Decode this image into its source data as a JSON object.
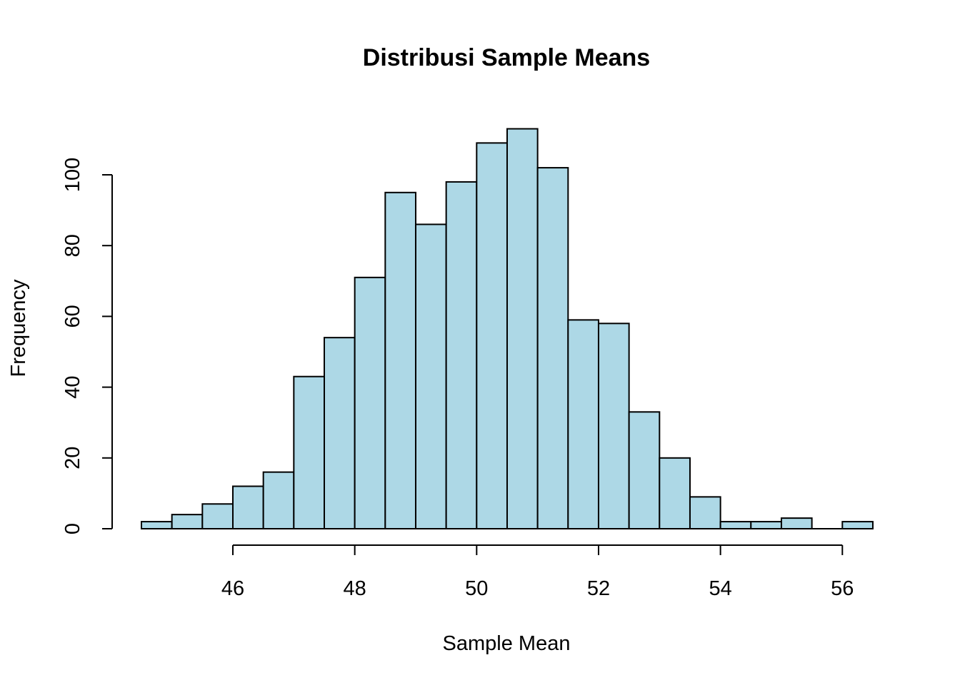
{
  "chart_data": {
    "type": "bar",
    "title": "Distribusi Sample Means",
    "xlabel": "Sample Mean",
    "ylabel": "Frequency",
    "bar_color": "#ADD8E6",
    "border_color": "#000000",
    "bin_width": 0.5,
    "bins": [
      {
        "start": 44.5,
        "end": 45.0,
        "count": 2
      },
      {
        "start": 45.0,
        "end": 45.5,
        "count": 4
      },
      {
        "start": 45.5,
        "end": 46.0,
        "count": 7
      },
      {
        "start": 46.0,
        "end": 46.5,
        "count": 12
      },
      {
        "start": 46.5,
        "end": 47.0,
        "count": 16
      },
      {
        "start": 47.0,
        "end": 47.5,
        "count": 43
      },
      {
        "start": 47.5,
        "end": 48.0,
        "count": 54
      },
      {
        "start": 48.0,
        "end": 48.5,
        "count": 71
      },
      {
        "start": 48.5,
        "end": 49.0,
        "count": 95
      },
      {
        "start": 49.0,
        "end": 49.5,
        "count": 86
      },
      {
        "start": 49.5,
        "end": 50.0,
        "count": 98
      },
      {
        "start": 50.0,
        "end": 50.5,
        "count": 109
      },
      {
        "start": 50.5,
        "end": 51.0,
        "count": 113
      },
      {
        "start": 51.0,
        "end": 51.5,
        "count": 102
      },
      {
        "start": 51.5,
        "end": 52.0,
        "count": 59
      },
      {
        "start": 52.0,
        "end": 52.5,
        "count": 58
      },
      {
        "start": 52.5,
        "end": 53.0,
        "count": 33
      },
      {
        "start": 53.0,
        "end": 53.5,
        "count": 20
      },
      {
        "start": 53.5,
        "end": 54.0,
        "count": 9
      },
      {
        "start": 54.0,
        "end": 54.5,
        "count": 2
      },
      {
        "start": 54.5,
        "end": 55.0,
        "count": 2
      },
      {
        "start": 55.0,
        "end": 55.5,
        "count": 3
      },
      {
        "start": 55.5,
        "end": 56.0,
        "count": 0
      },
      {
        "start": 56.0,
        "end": 56.5,
        "count": 2
      }
    ],
    "xticks": [
      "46",
      "48",
      "50",
      "52",
      "54",
      "56"
    ],
    "yticks": [
      "0",
      "20",
      "40",
      "60",
      "80",
      "100"
    ],
    "xlim": [
      44.5,
      56.5
    ],
    "ylim": [
      0,
      113
    ],
    "grid": false,
    "legend": "none"
  }
}
